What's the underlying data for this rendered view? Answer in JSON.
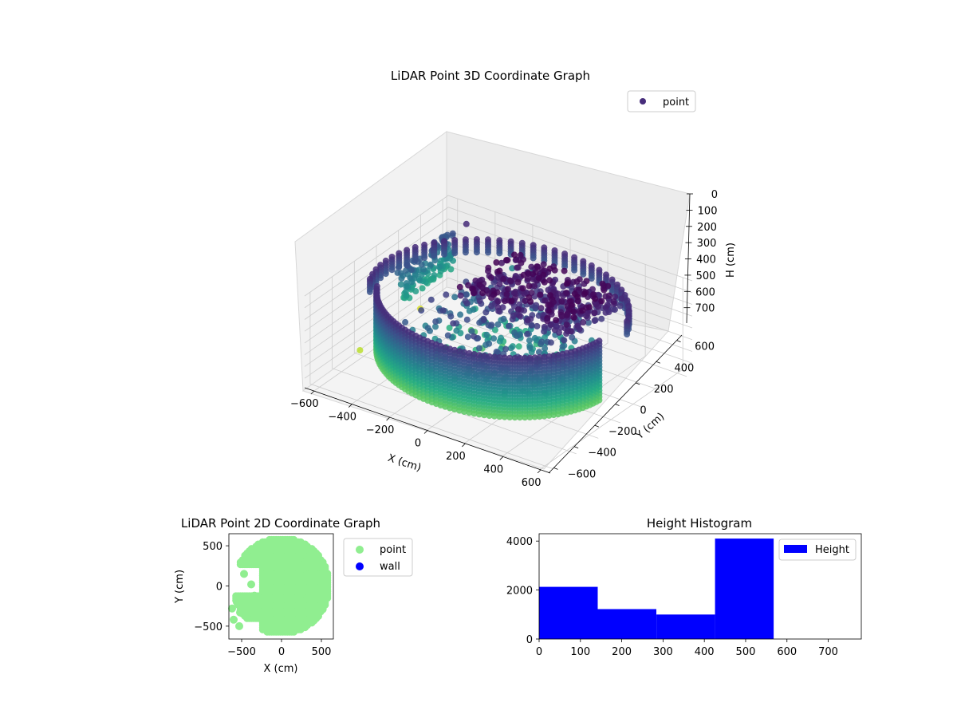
{
  "chart_data": [
    {
      "type": "scatter",
      "projection": "3d",
      "title": "LiDAR Point 3D Coordinate Graph",
      "xlabel": "X (cm)",
      "ylabel": "Y (cm)",
      "zlabel": "H (cm)",
      "xticks": [
        "−600",
        "−400",
        "−200",
        "0",
        "200",
        "400",
        "600"
      ],
      "yticks": [
        "−600",
        "−400",
        "−200",
        "0",
        "200",
        "400",
        "600"
      ],
      "zticks": [
        "0",
        "100",
        "200",
        "300",
        "400",
        "500",
        "600",
        "700"
      ],
      "xlim": [
        -650,
        650
      ],
      "ylim": [
        -650,
        650
      ],
      "zlim": [
        0,
        780
      ],
      "z_inverted": true,
      "colormap": "viridis",
      "legend": {
        "position": "top-right",
        "entries": [
          {
            "name": "point",
            "color": "#472d7b"
          }
        ]
      },
      "series": [
        {
          "name": "point",
          "structures": [
            {
              "kind": "front-wall-arc",
              "angle_deg": [
                205,
                358
              ],
              "radius_cm": 560,
              "h_cm": [
                110,
                640
              ]
            },
            {
              "kind": "back-ring",
              "angle_deg": [
                20,
                200
              ],
              "radius_cm": 600,
              "h_cm": [
                100,
                230
              ]
            },
            {
              "kind": "inner-top-cluster",
              "x_cm": [
                -150,
                450
              ],
              "y_cm": [
                -100,
                400
              ],
              "h_cm": [
                0,
                160
              ]
            },
            {
              "kind": "inner-scatter",
              "x_cm": [
                -300,
                400
              ],
              "y_cm": [
                -350,
                250
              ],
              "h_cm": [
                150,
                600
              ]
            },
            {
              "kind": "left-wall-fragment",
              "x_cm": [
                -600,
                -550
              ],
              "y_cm": [
                100,
                550
              ],
              "h_cm": [
                200,
                500
              ]
            },
            {
              "kind": "outliers",
              "points": [
                {
                  "x": -640,
                  "y": 380,
                  "h": 780
                },
                {
                  "x": -620,
                  "y": -200,
                  "h": 740
                },
                {
                  "x": -500,
                  "y": 560,
                  "h": 100
                },
                {
                  "x": -280,
                  "y": 600,
                  "h": 380
                },
                {
                  "x": -180,
                  "y": 620,
                  "h": 350
                },
                {
                  "x": 210,
                  "y": 180,
                  "h": 640
                }
              ]
            }
          ]
        }
      ]
    },
    {
      "type": "scatter",
      "title": "LiDAR Point 2D Coordinate Graph",
      "xlabel": "X (cm)",
      "ylabel": "Y (cm)",
      "xticks": [
        "−500",
        "0",
        "500"
      ],
      "yticks": [
        "−500",
        "0",
        "500"
      ],
      "xlim": [
        -660,
        650
      ],
      "ylim": [
        -660,
        650
      ],
      "legend": {
        "position": "outside-right",
        "entries": [
          {
            "name": "point",
            "color": "#90ee90"
          },
          {
            "name": "wall",
            "color": "#0000ff"
          }
        ]
      },
      "series": [
        {
          "name": "point",
          "color": "#90ee90",
          "region": "disc",
          "radius_cm": 600
        },
        {
          "name": "wall",
          "color": "#0000ff",
          "visible_points": 0
        }
      ]
    },
    {
      "type": "bar",
      "title": "Height Histogram",
      "xlabel": "",
      "ylabel": "",
      "bins": [
        [
          0,
          142
        ],
        [
          142,
          284
        ],
        [
          284,
          426
        ],
        [
          426,
          568
        ],
        [
          568,
          710
        ]
      ],
      "values": [
        2130,
        1220,
        1000,
        4100,
        0
      ],
      "xticks": [
        "0",
        "100",
        "200",
        "300",
        "400",
        "500",
        "600",
        "700"
      ],
      "yticks": [
        "0",
        "2000",
        "4000"
      ],
      "xlim": [
        0,
        780
      ],
      "ylim": [
        0,
        4300
      ],
      "color": "#0000ff",
      "legend": {
        "position": "top-right",
        "entries": [
          {
            "name": "Height",
            "color": "#0000ff"
          }
        ]
      }
    }
  ]
}
